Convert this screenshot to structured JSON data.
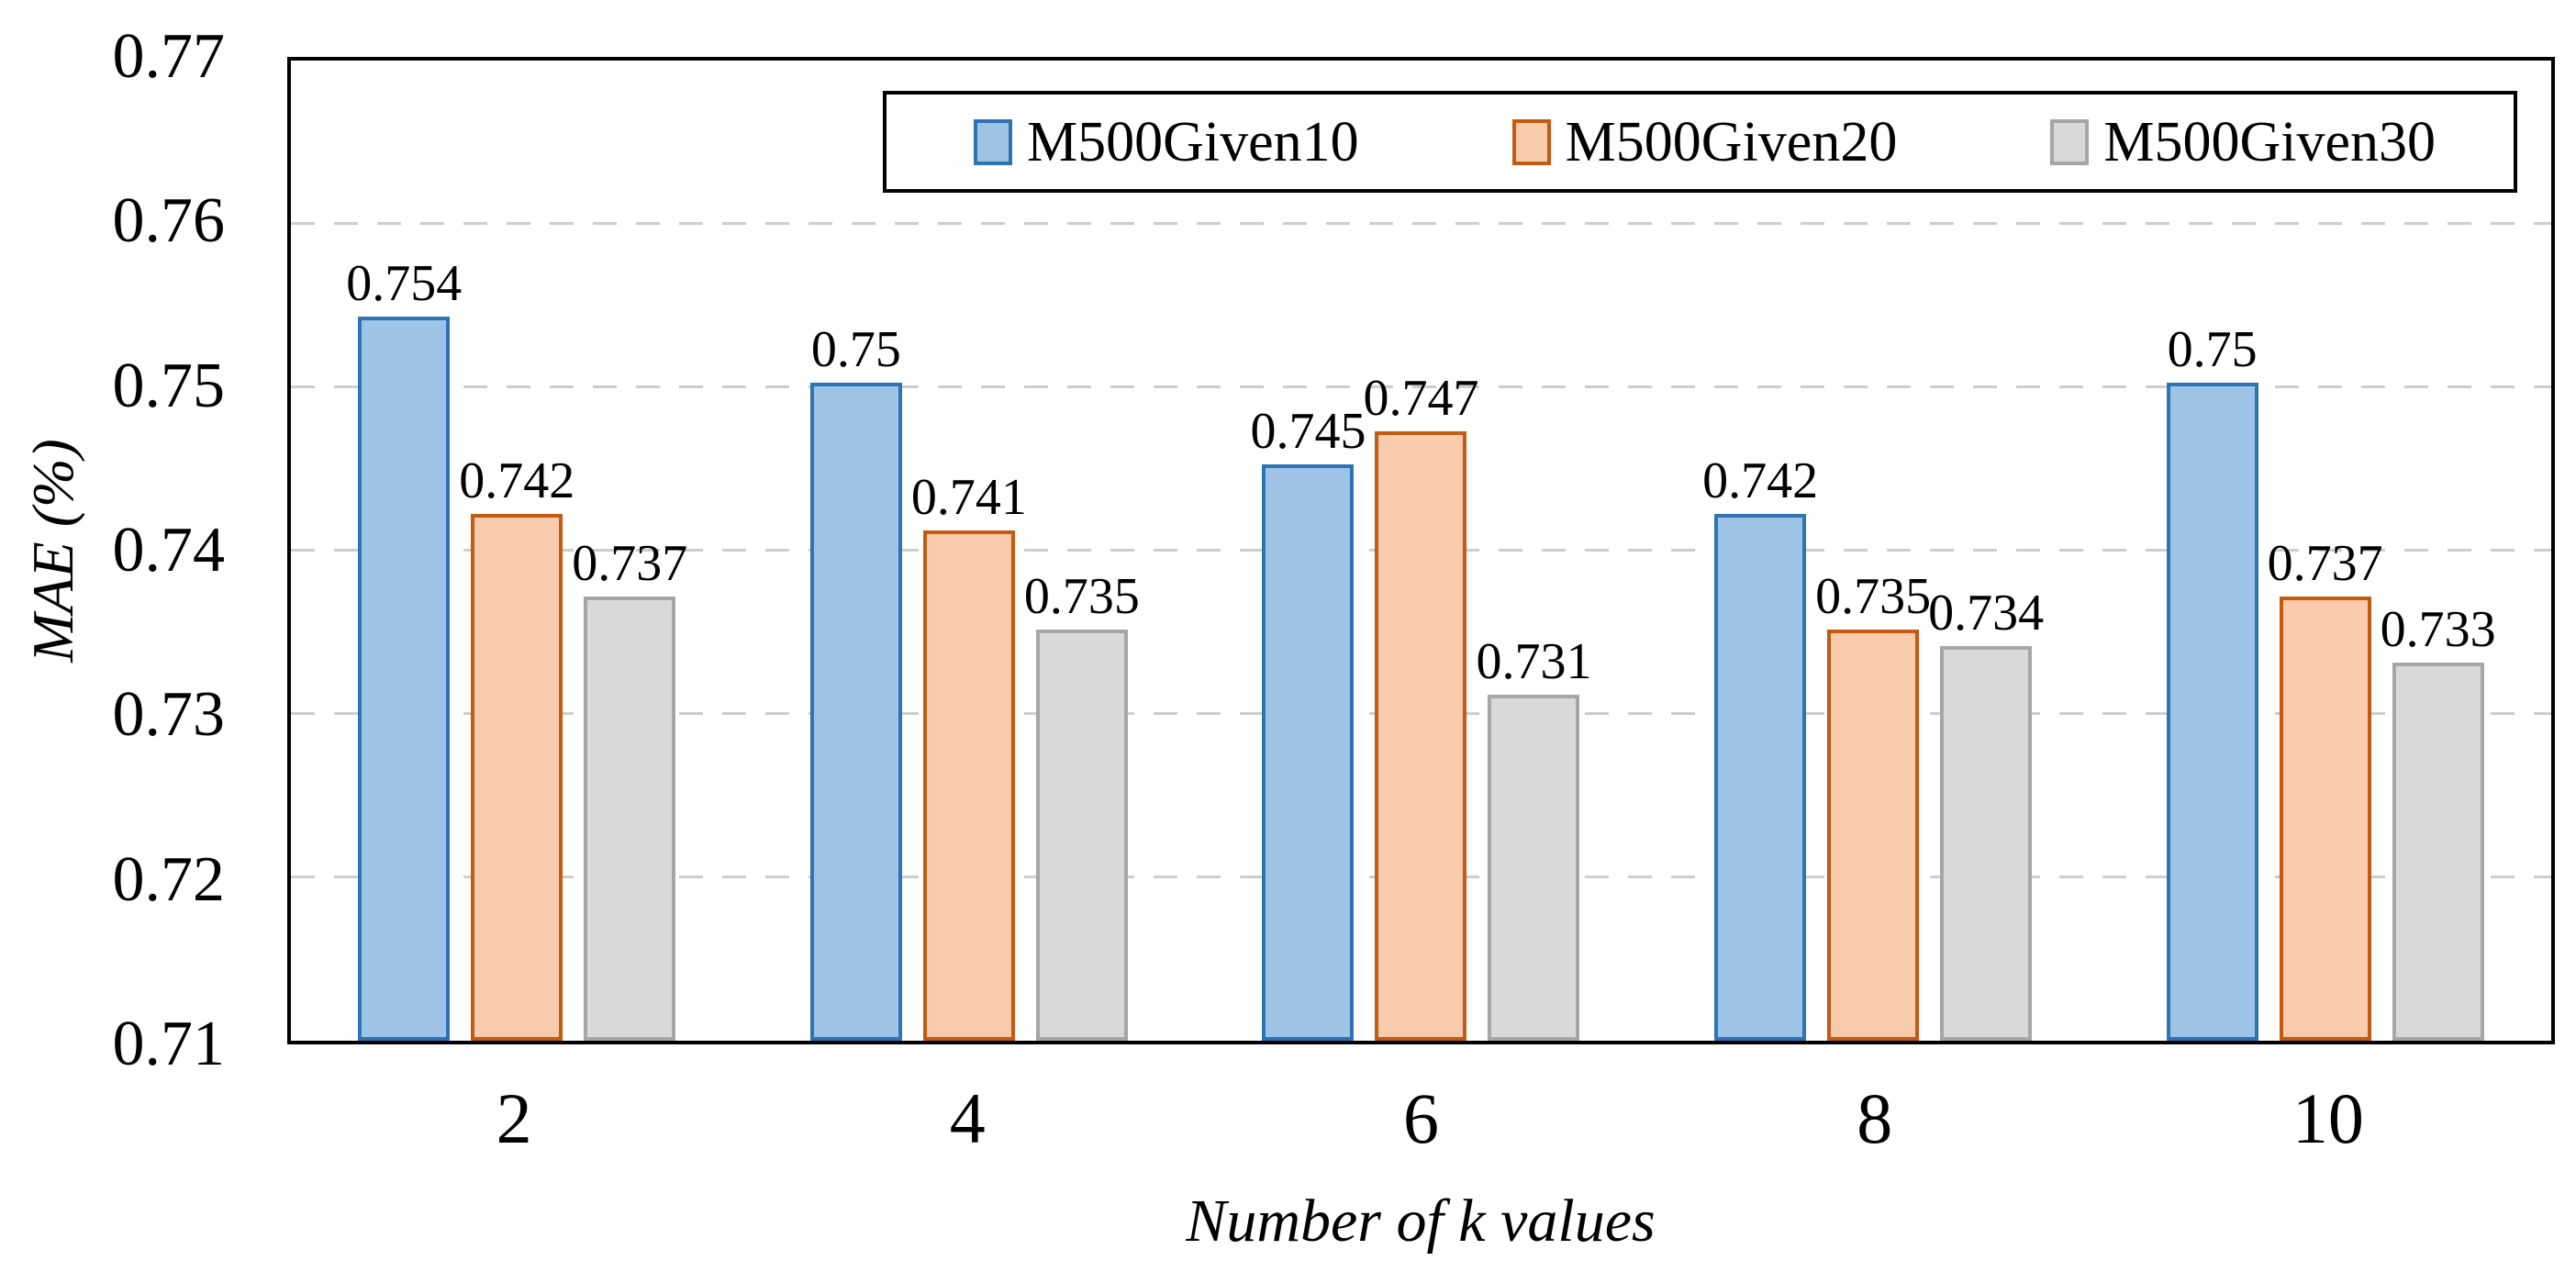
{
  "chart_data": {
    "type": "bar",
    "title": "",
    "xlabel": "Number of k values",
    "ylabel": "MAE (%)",
    "categories": [
      "2",
      "4",
      "6",
      "8",
      "10"
    ],
    "series": [
      {
        "name": "M500Given10",
        "fill_color": "#9dc3e6",
        "border_color": "#2e74b5",
        "values": [
          0.754,
          0.75,
          0.745,
          0.742,
          0.75
        ],
        "data_labels": [
          "0.754",
          "0.75",
          "0.745",
          "0.742",
          "0.75"
        ]
      },
      {
        "name": "M500Given20",
        "fill_color": "#f8cbad",
        "border_color": "#c55a11",
        "values": [
          0.742,
          0.741,
          0.747,
          0.735,
          0.737
        ],
        "data_labels": [
          "0.742",
          "0.741",
          "0.747",
          "0.735",
          "0.737"
        ]
      },
      {
        "name": "M500Given30",
        "fill_color": "#d9d9d9",
        "border_color": "#a6a6a6",
        "values": [
          0.737,
          0.735,
          0.731,
          0.734,
          0.733
        ],
        "data_labels": [
          "0.737",
          "0.735",
          "0.731",
          "0.734",
          "0.733"
        ]
      }
    ],
    "ylim": [
      0.71,
      0.77
    ],
    "yticks": [
      0.71,
      0.72,
      0.73,
      0.74,
      0.75,
      0.76,
      0.77
    ],
    "ytick_labels": [
      "0.71",
      "0.72",
      "0.73",
      "0.74",
      "0.75",
      "0.76",
      "0.77"
    ],
    "grid": "horizontal-dashed",
    "gridline_color": "#cdcdcd",
    "axis_color": "#000000",
    "text_color": "#000000",
    "legend_position": "top-inside"
  }
}
